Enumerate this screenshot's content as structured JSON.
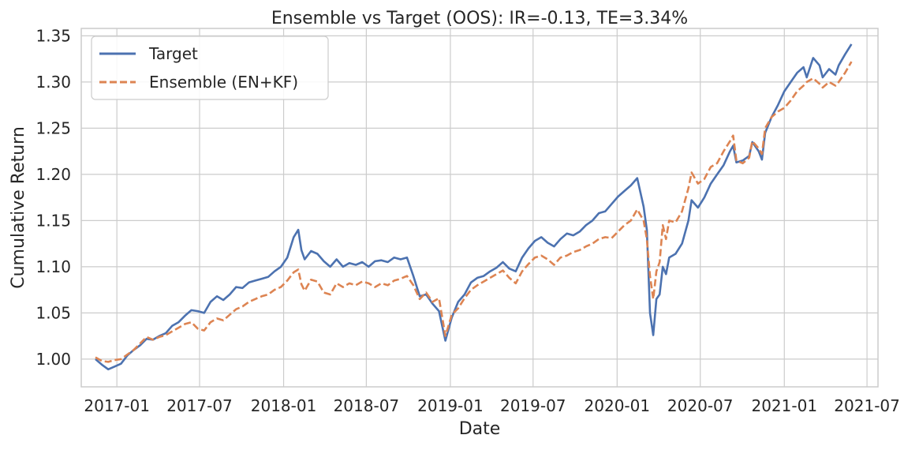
{
  "chart_data": {
    "type": "line",
    "title": "Ensemble vs Target (OOS): IR=-0.13, TE=3.34%",
    "xlabel": "Date",
    "ylabel": "Cumulative Return",
    "xlim": [
      "2016-10-15",
      "2021-07-25"
    ],
    "ylim": [
      0.97,
      1.358
    ],
    "x_ticks": [
      "2017-01",
      "2017-07",
      "2018-01",
      "2018-07",
      "2019-01",
      "2019-07",
      "2020-01",
      "2020-07",
      "2021-01",
      "2021-07"
    ],
    "y_ticks": [
      1.0,
      1.05,
      1.1,
      1.15,
      1.2,
      1.25,
      1.3,
      1.35
    ],
    "y_tick_labels": [
      "1.00",
      "1.05",
      "1.10",
      "1.15",
      "1.20",
      "1.25",
      "1.30",
      "1.35"
    ],
    "grid": true,
    "legend_position": "top-left",
    "series": [
      {
        "name": "Target",
        "color": "#4c72b0",
        "dash": "solid",
        "points": [
          [
            "2016-11-15",
            1.0
          ],
          [
            "2016-11-29",
            0.994
          ],
          [
            "2016-12-13",
            0.989
          ],
          [
            "2016-12-27",
            0.992
          ],
          [
            "2017-01-10",
            0.995
          ],
          [
            "2017-01-24",
            1.004
          ],
          [
            "2017-02-07",
            1.01
          ],
          [
            "2017-02-21",
            1.015
          ],
          [
            "2017-03-07",
            1.022
          ],
          [
            "2017-03-21",
            1.021
          ],
          [
            "2017-04-04",
            1.025
          ],
          [
            "2017-04-18",
            1.028
          ],
          [
            "2017-05-02",
            1.036
          ],
          [
            "2017-05-16",
            1.04
          ],
          [
            "2017-05-30",
            1.047
          ],
          [
            "2017-06-13",
            1.053
          ],
          [
            "2017-06-27",
            1.052
          ],
          [
            "2017-07-11",
            1.05
          ],
          [
            "2017-07-25",
            1.062
          ],
          [
            "2017-08-08",
            1.068
          ],
          [
            "2017-08-22",
            1.064
          ],
          [
            "2017-09-05",
            1.07
          ],
          [
            "2017-09-19",
            1.078
          ],
          [
            "2017-10-03",
            1.077
          ],
          [
            "2017-10-17",
            1.083
          ],
          [
            "2017-10-31",
            1.085
          ],
          [
            "2017-11-14",
            1.087
          ],
          [
            "2017-11-28",
            1.089
          ],
          [
            "2017-12-12",
            1.095
          ],
          [
            "2017-12-26",
            1.1
          ],
          [
            "2018-01-09",
            1.11
          ],
          [
            "2018-01-23",
            1.132
          ],
          [
            "2018-02-02",
            1.14
          ],
          [
            "2018-02-09",
            1.118
          ],
          [
            "2018-02-16",
            1.108
          ],
          [
            "2018-03-02",
            1.117
          ],
          [
            "2018-03-16",
            1.114
          ],
          [
            "2018-03-30",
            1.106
          ],
          [
            "2018-04-13",
            1.1
          ],
          [
            "2018-04-27",
            1.108
          ],
          [
            "2018-05-11",
            1.1
          ],
          [
            "2018-05-25",
            1.104
          ],
          [
            "2018-06-08",
            1.102
          ],
          [
            "2018-06-22",
            1.105
          ],
          [
            "2018-07-06",
            1.1
          ],
          [
            "2018-07-20",
            1.106
          ],
          [
            "2018-08-03",
            1.107
          ],
          [
            "2018-08-17",
            1.105
          ],
          [
            "2018-08-31",
            1.11
          ],
          [
            "2018-09-14",
            1.108
          ],
          [
            "2018-09-28",
            1.11
          ],
          [
            "2018-10-12",
            1.09
          ],
          [
            "2018-10-26",
            1.068
          ],
          [
            "2018-11-09",
            1.07
          ],
          [
            "2018-11-23",
            1.06
          ],
          [
            "2018-12-07",
            1.052
          ],
          [
            "2018-12-21",
            1.02
          ],
          [
            "2019-01-04",
            1.045
          ],
          [
            "2019-01-18",
            1.062
          ],
          [
            "2019-02-01",
            1.07
          ],
          [
            "2019-02-15",
            1.083
          ],
          [
            "2019-03-01",
            1.088
          ],
          [
            "2019-03-15",
            1.09
          ],
          [
            "2019-03-29",
            1.095
          ],
          [
            "2019-04-12",
            1.099
          ],
          [
            "2019-04-26",
            1.105
          ],
          [
            "2019-05-10",
            1.098
          ],
          [
            "2019-05-24",
            1.095
          ],
          [
            "2019-06-07",
            1.11
          ],
          [
            "2019-06-21",
            1.12
          ],
          [
            "2019-07-05",
            1.128
          ],
          [
            "2019-07-19",
            1.132
          ],
          [
            "2019-08-02",
            1.126
          ],
          [
            "2019-08-16",
            1.122
          ],
          [
            "2019-08-30",
            1.13
          ],
          [
            "2019-09-13",
            1.136
          ],
          [
            "2019-09-27",
            1.134
          ],
          [
            "2019-10-11",
            1.138
          ],
          [
            "2019-10-25",
            1.145
          ],
          [
            "2019-11-08",
            1.15
          ],
          [
            "2019-11-22",
            1.158
          ],
          [
            "2019-12-06",
            1.16
          ],
          [
            "2019-12-20",
            1.168
          ],
          [
            "2020-01-03",
            1.176
          ],
          [
            "2020-01-17",
            1.182
          ],
          [
            "2020-01-31",
            1.188
          ],
          [
            "2020-02-14",
            1.196
          ],
          [
            "2020-02-28",
            1.165
          ],
          [
            "2020-03-06",
            1.14
          ],
          [
            "2020-03-13",
            1.05
          ],
          [
            "2020-03-20",
            1.026
          ],
          [
            "2020-03-27",
            1.065
          ],
          [
            "2020-04-03",
            1.07
          ],
          [
            "2020-04-10",
            1.1
          ],
          [
            "2020-04-17",
            1.092
          ],
          [
            "2020-04-24",
            1.11
          ],
          [
            "2020-05-08",
            1.114
          ],
          [
            "2020-05-22",
            1.125
          ],
          [
            "2020-06-05",
            1.15
          ],
          [
            "2020-06-12",
            1.172
          ],
          [
            "2020-06-26",
            1.164
          ],
          [
            "2020-07-10",
            1.175
          ],
          [
            "2020-07-24",
            1.19
          ],
          [
            "2020-08-07",
            1.2
          ],
          [
            "2020-08-21",
            1.21
          ],
          [
            "2020-09-04",
            1.225
          ],
          [
            "2020-09-11",
            1.231
          ],
          [
            "2020-09-18",
            1.213
          ],
          [
            "2020-10-02",
            1.215
          ],
          [
            "2020-10-16",
            1.22
          ],
          [
            "2020-10-23",
            1.235
          ],
          [
            "2020-11-06",
            1.225
          ],
          [
            "2020-11-13",
            1.216
          ],
          [
            "2020-11-20",
            1.245
          ],
          [
            "2020-12-04",
            1.262
          ],
          [
            "2020-12-18",
            1.275
          ],
          [
            "2021-01-01",
            1.29
          ],
          [
            "2021-01-15",
            1.3
          ],
          [
            "2021-01-29",
            1.31
          ],
          [
            "2021-02-12",
            1.316
          ],
          [
            "2021-02-19",
            1.305
          ],
          [
            "2021-03-05",
            1.326
          ],
          [
            "2021-03-19",
            1.318
          ],
          [
            "2021-03-26",
            1.305
          ],
          [
            "2021-04-09",
            1.314
          ],
          [
            "2021-04-23",
            1.308
          ],
          [
            "2021-04-30",
            1.318
          ],
          [
            "2021-05-14",
            1.33
          ],
          [
            "2021-05-28",
            1.341
          ]
        ]
      },
      {
        "name": "Ensemble (EN+KF)",
        "color": "#dd8452",
        "dash": "dashed",
        "points": [
          [
            "2016-11-15",
            1.002
          ],
          [
            "2016-11-29",
            0.998
          ],
          [
            "2016-12-13",
            0.997
          ],
          [
            "2016-12-27",
            0.999
          ],
          [
            "2017-01-10",
            1.0
          ],
          [
            "2017-01-24",
            1.005
          ],
          [
            "2017-02-07",
            1.01
          ],
          [
            "2017-02-21",
            1.017
          ],
          [
            "2017-03-07",
            1.024
          ],
          [
            "2017-03-21",
            1.021
          ],
          [
            "2017-04-04",
            1.024
          ],
          [
            "2017-04-18",
            1.026
          ],
          [
            "2017-05-02",
            1.03
          ],
          [
            "2017-05-16",
            1.034
          ],
          [
            "2017-05-30",
            1.038
          ],
          [
            "2017-06-13",
            1.04
          ],
          [
            "2017-06-27",
            1.033
          ],
          [
            "2017-07-11",
            1.031
          ],
          [
            "2017-07-25",
            1.04
          ],
          [
            "2017-08-08",
            1.044
          ],
          [
            "2017-08-22",
            1.042
          ],
          [
            "2017-09-05",
            1.048
          ],
          [
            "2017-09-19",
            1.054
          ],
          [
            "2017-10-03",
            1.057
          ],
          [
            "2017-10-17",
            1.062
          ],
          [
            "2017-10-31",
            1.065
          ],
          [
            "2017-11-14",
            1.068
          ],
          [
            "2017-11-28",
            1.07
          ],
          [
            "2017-12-12",
            1.075
          ],
          [
            "2017-12-26",
            1.078
          ],
          [
            "2018-01-09",
            1.085
          ],
          [
            "2018-01-23",
            1.094
          ],
          [
            "2018-02-02",
            1.097
          ],
          [
            "2018-02-09",
            1.081
          ],
          [
            "2018-02-16",
            1.074
          ],
          [
            "2018-03-02",
            1.086
          ],
          [
            "2018-03-16",
            1.084
          ],
          [
            "2018-03-30",
            1.072
          ],
          [
            "2018-04-13",
            1.07
          ],
          [
            "2018-04-27",
            1.082
          ],
          [
            "2018-05-11",
            1.078
          ],
          [
            "2018-05-25",
            1.082
          ],
          [
            "2018-06-08",
            1.08
          ],
          [
            "2018-06-22",
            1.084
          ],
          [
            "2018-07-06",
            1.082
          ],
          [
            "2018-07-20",
            1.078
          ],
          [
            "2018-08-03",
            1.082
          ],
          [
            "2018-08-17",
            1.08
          ],
          [
            "2018-08-31",
            1.085
          ],
          [
            "2018-09-14",
            1.087
          ],
          [
            "2018-09-28",
            1.09
          ],
          [
            "2018-10-12",
            1.08
          ],
          [
            "2018-10-26",
            1.065
          ],
          [
            "2018-11-09",
            1.072
          ],
          [
            "2018-11-23",
            1.062
          ],
          [
            "2018-12-07",
            1.066
          ],
          [
            "2018-12-21",
            1.025
          ],
          [
            "2019-01-04",
            1.048
          ],
          [
            "2019-01-18",
            1.055
          ],
          [
            "2019-02-01",
            1.066
          ],
          [
            "2019-02-15",
            1.075
          ],
          [
            "2019-03-01",
            1.08
          ],
          [
            "2019-03-15",
            1.084
          ],
          [
            "2019-03-29",
            1.088
          ],
          [
            "2019-04-12",
            1.092
          ],
          [
            "2019-04-26",
            1.096
          ],
          [
            "2019-05-10",
            1.088
          ],
          [
            "2019-05-24",
            1.082
          ],
          [
            "2019-06-07",
            1.095
          ],
          [
            "2019-06-21",
            1.103
          ],
          [
            "2019-07-05",
            1.11
          ],
          [
            "2019-07-19",
            1.112
          ],
          [
            "2019-08-02",
            1.108
          ],
          [
            "2019-08-16",
            1.102
          ],
          [
            "2019-08-30",
            1.11
          ],
          [
            "2019-09-13",
            1.112
          ],
          [
            "2019-09-27",
            1.116
          ],
          [
            "2019-10-11",
            1.118
          ],
          [
            "2019-10-25",
            1.122
          ],
          [
            "2019-11-08",
            1.125
          ],
          [
            "2019-11-22",
            1.13
          ],
          [
            "2019-12-06",
            1.132
          ],
          [
            "2019-12-20",
            1.131
          ],
          [
            "2020-01-03",
            1.138
          ],
          [
            "2020-01-17",
            1.145
          ],
          [
            "2020-01-31",
            1.15
          ],
          [
            "2020-02-14",
            1.162
          ],
          [
            "2020-02-28",
            1.15
          ],
          [
            "2020-03-06",
            1.13
          ],
          [
            "2020-03-13",
            1.09
          ],
          [
            "2020-03-20",
            1.065
          ],
          [
            "2020-03-27",
            1.095
          ],
          [
            "2020-04-03",
            1.105
          ],
          [
            "2020-04-10",
            1.145
          ],
          [
            "2020-04-17",
            1.13
          ],
          [
            "2020-04-24",
            1.15
          ],
          [
            "2020-05-08",
            1.148
          ],
          [
            "2020-05-22",
            1.16
          ],
          [
            "2020-06-05",
            1.185
          ],
          [
            "2020-06-12",
            1.202
          ],
          [
            "2020-06-26",
            1.19
          ],
          [
            "2020-07-10",
            1.195
          ],
          [
            "2020-07-24",
            1.208
          ],
          [
            "2020-08-07",
            1.212
          ],
          [
            "2020-08-21",
            1.225
          ],
          [
            "2020-09-04",
            1.236
          ],
          [
            "2020-09-11",
            1.242
          ],
          [
            "2020-09-18",
            1.215
          ],
          [
            "2020-10-02",
            1.212
          ],
          [
            "2020-10-16",
            1.218
          ],
          [
            "2020-10-23",
            1.236
          ],
          [
            "2020-11-06",
            1.228
          ],
          [
            "2020-11-13",
            1.222
          ],
          [
            "2020-11-20",
            1.25
          ],
          [
            "2020-12-04",
            1.262
          ],
          [
            "2020-12-18",
            1.268
          ],
          [
            "2021-01-01",
            1.272
          ],
          [
            "2021-01-15",
            1.28
          ],
          [
            "2021-01-29",
            1.29
          ],
          [
            "2021-02-12",
            1.296
          ],
          [
            "2021-02-19",
            1.3
          ],
          [
            "2021-03-05",
            1.304
          ],
          [
            "2021-03-19",
            1.298
          ],
          [
            "2021-03-26",
            1.294
          ],
          [
            "2021-04-09",
            1.3
          ],
          [
            "2021-04-23",
            1.296
          ],
          [
            "2021-04-30",
            1.3
          ],
          [
            "2021-05-14",
            1.31
          ],
          [
            "2021-05-28",
            1.322
          ]
        ]
      }
    ]
  }
}
